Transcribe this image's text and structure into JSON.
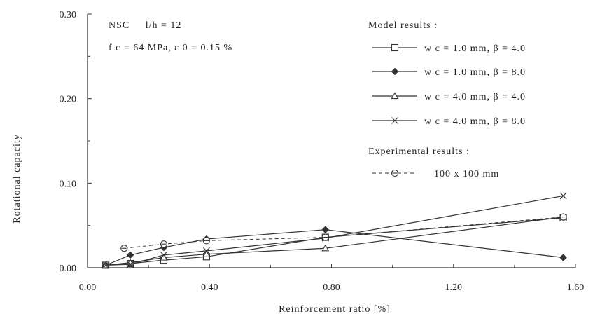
{
  "chart_data": {
    "type": "line",
    "xlabel": "Reinforcement ratio [%]",
    "ylabel": "Rotational capacity",
    "xlim": [
      0,
      1.6
    ],
    "ylim": [
      0,
      0.3
    ],
    "x_ticks": [
      "0.00",
      "0.40",
      "0.80",
      "1.20",
      "1.60"
    ],
    "y_ticks": [
      "0.00",
      "0.10",
      "0.20",
      "0.30"
    ],
    "grid": false,
    "annotations": [
      "NSC     l/h = 12",
      "f c = 64 MPa, ε 0 = 0.15 %"
    ],
    "legend": {
      "placement": "top-right",
      "model_header": "Model results :",
      "experimental_header": "Experimental results :"
    },
    "series": [
      {
        "name": "w c = 1.0 mm, β = 4.0",
        "group": "model",
        "marker": "square",
        "dash": "solid",
        "x": [
          0.06,
          0.14,
          0.25,
          0.39,
          0.78,
          1.56
        ],
        "y": [
          0.003,
          0.005,
          0.009,
          0.013,
          0.036,
          0.059
        ]
      },
      {
        "name": "w c = 1.0 mm, β = 8.0",
        "group": "model",
        "marker": "diamond",
        "dash": "solid",
        "x": [
          0.06,
          0.14,
          0.25,
          0.39,
          0.78,
          1.56
        ],
        "y": [
          0.003,
          0.015,
          0.024,
          0.034,
          0.045,
          0.012
        ]
      },
      {
        "name": "w c = 4.0 mm, β = 4.0",
        "group": "model",
        "marker": "triangle",
        "dash": "solid",
        "x": [
          0.06,
          0.14,
          0.25,
          0.39,
          0.78,
          1.56
        ],
        "y": [
          0.003,
          0.006,
          0.012,
          0.016,
          0.023,
          0.06
        ]
      },
      {
        "name": "w c = 4.0 mm, β = 8.0",
        "group": "model",
        "marker": "x",
        "dash": "solid",
        "x": [
          0.06,
          0.14,
          0.25,
          0.39,
          0.78,
          1.56
        ],
        "y": [
          0.003,
          0.004,
          0.015,
          0.02,
          0.035,
          0.085
        ]
      },
      {
        "name": "100 x 100 mm",
        "group": "experimental",
        "marker": "circle-dash",
        "dash": "dashed",
        "x": [
          0.12,
          0.25,
          0.39,
          0.78,
          1.56
        ],
        "y": [
          0.023,
          0.028,
          0.032,
          0.036,
          0.06
        ]
      }
    ]
  }
}
